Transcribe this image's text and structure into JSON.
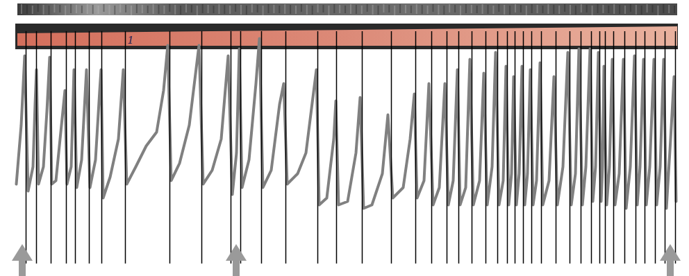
{
  "chart_data": {
    "type": "line",
    "tick_labels": false,
    "color": "#808080",
    "xlim": [
      0,
      992
    ],
    "ylim": [
      20,
      355
    ],
    "x": [
      23,
      30,
      35,
      40,
      47,
      50,
      52,
      55,
      62,
      67,
      71,
      74,
      80,
      88,
      93,
      96,
      102,
      106,
      110,
      117,
      124,
      129,
      137,
      143,
      145,
      148,
      158,
      170,
      177,
      182,
      195,
      210,
      225,
      235,
      241,
      246,
      258,
      272,
      286,
      292,
      305,
      318,
      328,
      334,
      340,
      344,
      348,
      358,
      368,
      373,
      378,
      390,
      402,
      408,
      413,
      428,
      440,
      450,
      455,
      459,
      470,
      480,
      483,
      487,
      500,
      512,
      518,
      523,
      535,
      550,
      558,
      565,
      580,
      590,
      596,
      600,
      610,
      617,
      623,
      632,
      640,
      645,
      652,
      658,
      662,
      670,
      676,
      681,
      690,
      696,
      701,
      708,
      713,
      718,
      724,
      728,
      732,
      736,
      739,
      743,
      747,
      751,
      755,
      759,
      763,
      767,
      772,
      777,
      781,
      790,
      797,
      802,
      810,
      817,
      822,
      828,
      833,
      838,
      843,
      849,
      853,
      857,
      861,
      865,
      867,
      869,
      873,
      877,
      881,
      885,
      891,
      897,
      901,
      907,
      913,
      917,
      921,
      926,
      930,
      935,
      941,
      945,
      950,
      955,
      959,
      965,
      970,
      973
    ],
    "values": [
      135,
      220,
      320,
      125,
      160,
      250,
      300,
      135,
      160,
      240,
      318,
      135,
      140,
      220,
      270,
      135,
      160,
      300,
      130,
      170,
      300,
      130,
      170,
      270,
      300,
      115,
      145,
      200,
      300,
      135,
      160,
      190,
      210,
      270,
      335,
      140,
      165,
      220,
      335,
      135,
      155,
      200,
      320,
      120,
      180,
      330,
      130,
      170,
      280,
      345,
      130,
      155,
      250,
      280,
      135,
      150,
      180,
      260,
      300,
      105,
      115,
      200,
      255,
      105,
      110,
      180,
      260,
      100,
      105,
      150,
      235,
      115,
      130,
      200,
      265,
      115,
      140,
      280,
      105,
      130,
      280,
      105,
      140,
      300,
      105,
      130,
      315,
      105,
      140,
      295,
      105,
      160,
      325,
      105,
      140,
      305,
      105,
      150,
      290,
      105,
      150,
      305,
      105,
      150,
      300,
      105,
      140,
      310,
      105,
      140,
      290,
      105,
      160,
      325,
      105,
      150,
      330,
      105,
      160,
      330,
      110,
      160,
      325,
      110,
      160,
      305,
      105,
      160,
      315,
      105,
      150,
      315,
      100,
      160,
      320,
      105,
      160,
      315,
      105,
      160,
      315,
      105,
      160,
      315,
      100,
      200,
      290,
      110
    ],
    "ring_boundaries": [
      37,
      52,
      73,
      95,
      108,
      128,
      146,
      180,
      244,
      290,
      332,
      346,
      376,
      411,
      457,
      484,
      521,
      563,
      598,
      621,
      643,
      660,
      679,
      699,
      716,
      730,
      741,
      753,
      765,
      779,
      800,
      820,
      836,
      851,
      863,
      871,
      883,
      899,
      915,
      928,
      943,
      957,
      972
    ],
    "boundary_color": "#000000",
    "arrows": [
      32,
      340,
      965
    ],
    "annotations": [
      {
        "x": 188,
        "text": "1"
      }
    ]
  }
}
